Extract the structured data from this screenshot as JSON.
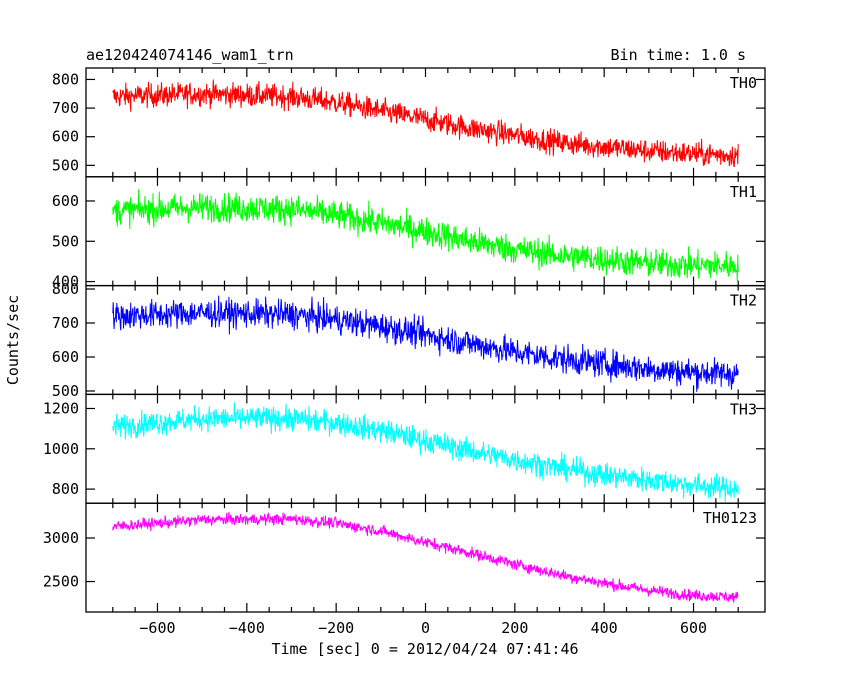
{
  "header": {
    "title": "ae120424074146_wam1_trn",
    "bin_time": "Bin time: 1.0 s"
  },
  "axes": {
    "ylabel": "Counts/sec",
    "xlabel": "Time [sec] 0 = 2012/04/24 07:41:46"
  },
  "chart_data": {
    "type": "line",
    "title": "ae120424074146_wam1_trn",
    "xlabel": "Time [sec] 0 = 2012/04/24 07:41:46",
    "ylabel": "Counts/sec",
    "xlim": [
      -760,
      760
    ],
    "x_ticks": [
      -600,
      -400,
      -200,
      0,
      200,
      400,
      600
    ],
    "x_range_data": [
      -700,
      700
    ],
    "panels": [
      {
        "name": "TH0",
        "color": "#ff0000",
        "ylim": [
          460,
          840
        ],
        "y_ticks": [
          500,
          600,
          700,
          800
        ],
        "trend": {
          "x": [
            -700,
            -500,
            -300,
            -200,
            -100,
            0,
            100,
            200,
            300,
            400,
            500,
            600,
            700
          ],
          "y": [
            740,
            750,
            740,
            720,
            690,
            660,
            630,
            605,
            580,
            565,
            550,
            540,
            535
          ]
        },
        "noise": 35
      },
      {
        "name": "TH1",
        "color": "#00ff00",
        "ylim": [
          390,
          660
        ],
        "y_ticks": [
          400,
          500,
          600
        ],
        "trend": {
          "x": [
            -700,
            -500,
            -300,
            -200,
            -100,
            0,
            100,
            200,
            300,
            400,
            500,
            600,
            700
          ],
          "y": [
            575,
            585,
            580,
            565,
            545,
            525,
            500,
            480,
            465,
            455,
            445,
            440,
            440
          ]
        },
        "noise": 30
      },
      {
        "name": "TH2",
        "color": "#0000ff",
        "ylim": [
          490,
          810
        ],
        "y_ticks": [
          500,
          600,
          700,
          800
        ],
        "trend": {
          "x": [
            -700,
            -500,
            -300,
            -200,
            -100,
            0,
            100,
            200,
            300,
            400,
            500,
            600,
            700
          ],
          "y": [
            720,
            730,
            725,
            710,
            690,
            665,
            640,
            615,
            595,
            580,
            565,
            555,
            550
          ]
        },
        "noise": 35
      },
      {
        "name": "TH3",
        "color": "#00ffff",
        "ylim": [
          730,
          1270
        ],
        "y_ticks": [
          800,
          1000,
          1200
        ],
        "trend": {
          "x": [
            -700,
            -500,
            -300,
            -200,
            -100,
            0,
            100,
            200,
            300,
            400,
            500,
            600,
            700
          ],
          "y": [
            1110,
            1150,
            1150,
            1130,
            1090,
            1040,
            990,
            945,
            905,
            870,
            845,
            820,
            800
          ]
        },
        "noise": 50
      },
      {
        "name": "TH0123",
        "color": "#ff00ff",
        "ylim": [
          2150,
          3400
        ],
        "y_ticks": [
          2500,
          3000
        ],
        "trend": {
          "x": [
            -700,
            -500,
            -300,
            -200,
            -100,
            0,
            100,
            200,
            300,
            400,
            500,
            600,
            700
          ],
          "y": [
            3130,
            3210,
            3220,
            3170,
            3080,
            2950,
            2830,
            2700,
            2580,
            2480,
            2400,
            2340,
            2320
          ]
        },
        "noise": 55
      }
    ]
  }
}
